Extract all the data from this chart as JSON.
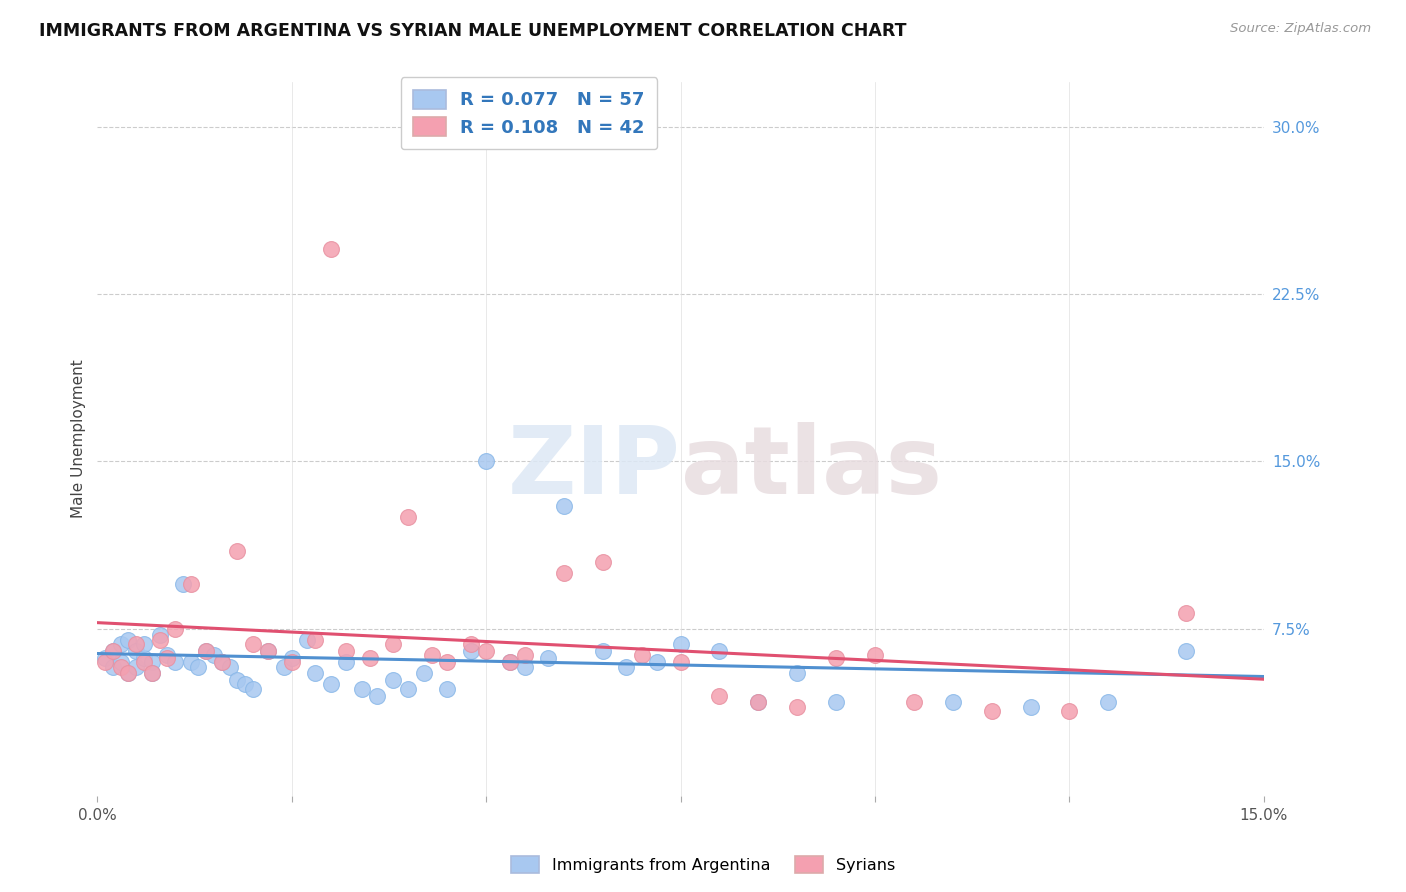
{
  "title": "IMMIGRANTS FROM ARGENTINA VS SYRIAN MALE UNEMPLOYMENT CORRELATION CHART",
  "source": "Source: ZipAtlas.com",
  "ylabel": "Male Unemployment",
  "xlim": [
    0.0,
    0.15
  ],
  "ylim": [
    0.0,
    0.32
  ],
  "yticks": [
    0.075,
    0.15,
    0.225,
    0.3
  ],
  "ytick_labels": [
    "7.5%",
    "15.0%",
    "22.5%",
    "30.0%"
  ],
  "xtick_labels": [
    "0.0%",
    "15.0%"
  ],
  "legend1_label": "R = 0.077   N = 57",
  "legend2_label": "R = 0.108   N = 42",
  "legend_bottom1": "Immigrants from Argentina",
  "legend_bottom2": "Syrians",
  "blue_color": "#a8c8f0",
  "pink_color": "#f4a0b0",
  "line_blue": "#5090d0",
  "line_pink": "#e05070",
  "argentina_x": [
    0.001,
    0.002,
    0.002,
    0.003,
    0.003,
    0.004,
    0.004,
    0.005,
    0.005,
    0.006,
    0.006,
    0.007,
    0.007,
    0.008,
    0.009,
    0.01,
    0.011,
    0.012,
    0.013,
    0.014,
    0.015,
    0.016,
    0.017,
    0.018,
    0.019,
    0.02,
    0.022,
    0.024,
    0.025,
    0.027,
    0.028,
    0.03,
    0.032,
    0.034,
    0.036,
    0.038,
    0.04,
    0.042,
    0.045,
    0.048,
    0.05,
    0.053,
    0.055,
    0.058,
    0.06,
    0.065,
    0.068,
    0.072,
    0.075,
    0.08,
    0.085,
    0.09,
    0.095,
    0.11,
    0.12,
    0.13,
    0.14
  ],
  "argentina_y": [
    0.062,
    0.058,
    0.065,
    0.06,
    0.068,
    0.055,
    0.07,
    0.058,
    0.065,
    0.062,
    0.068,
    0.06,
    0.055,
    0.072,
    0.063,
    0.06,
    0.095,
    0.06,
    0.058,
    0.065,
    0.063,
    0.06,
    0.058,
    0.052,
    0.05,
    0.048,
    0.065,
    0.058,
    0.062,
    0.07,
    0.055,
    0.05,
    0.06,
    0.048,
    0.045,
    0.052,
    0.048,
    0.055,
    0.048,
    0.065,
    0.15,
    0.06,
    0.058,
    0.062,
    0.13,
    0.065,
    0.058,
    0.06,
    0.068,
    0.065,
    0.042,
    0.055,
    0.042,
    0.042,
    0.04,
    0.042,
    0.065
  ],
  "syrians_x": [
    0.001,
    0.002,
    0.003,
    0.004,
    0.005,
    0.006,
    0.007,
    0.008,
    0.009,
    0.01,
    0.012,
    0.014,
    0.016,
    0.018,
    0.02,
    0.022,
    0.025,
    0.028,
    0.03,
    0.032,
    0.035,
    0.038,
    0.04,
    0.043,
    0.045,
    0.048,
    0.05,
    0.053,
    0.055,
    0.06,
    0.065,
    0.07,
    0.075,
    0.08,
    0.085,
    0.09,
    0.095,
    0.1,
    0.105,
    0.115,
    0.125,
    0.14
  ],
  "syrians_y": [
    0.06,
    0.065,
    0.058,
    0.055,
    0.068,
    0.06,
    0.055,
    0.07,
    0.062,
    0.075,
    0.095,
    0.065,
    0.06,
    0.11,
    0.068,
    0.065,
    0.06,
    0.07,
    0.245,
    0.065,
    0.062,
    0.068,
    0.125,
    0.063,
    0.06,
    0.068,
    0.065,
    0.06,
    0.063,
    0.1,
    0.105,
    0.063,
    0.06,
    0.045,
    0.042,
    0.04,
    0.062,
    0.063,
    0.042,
    0.038,
    0.038,
    0.082
  ]
}
